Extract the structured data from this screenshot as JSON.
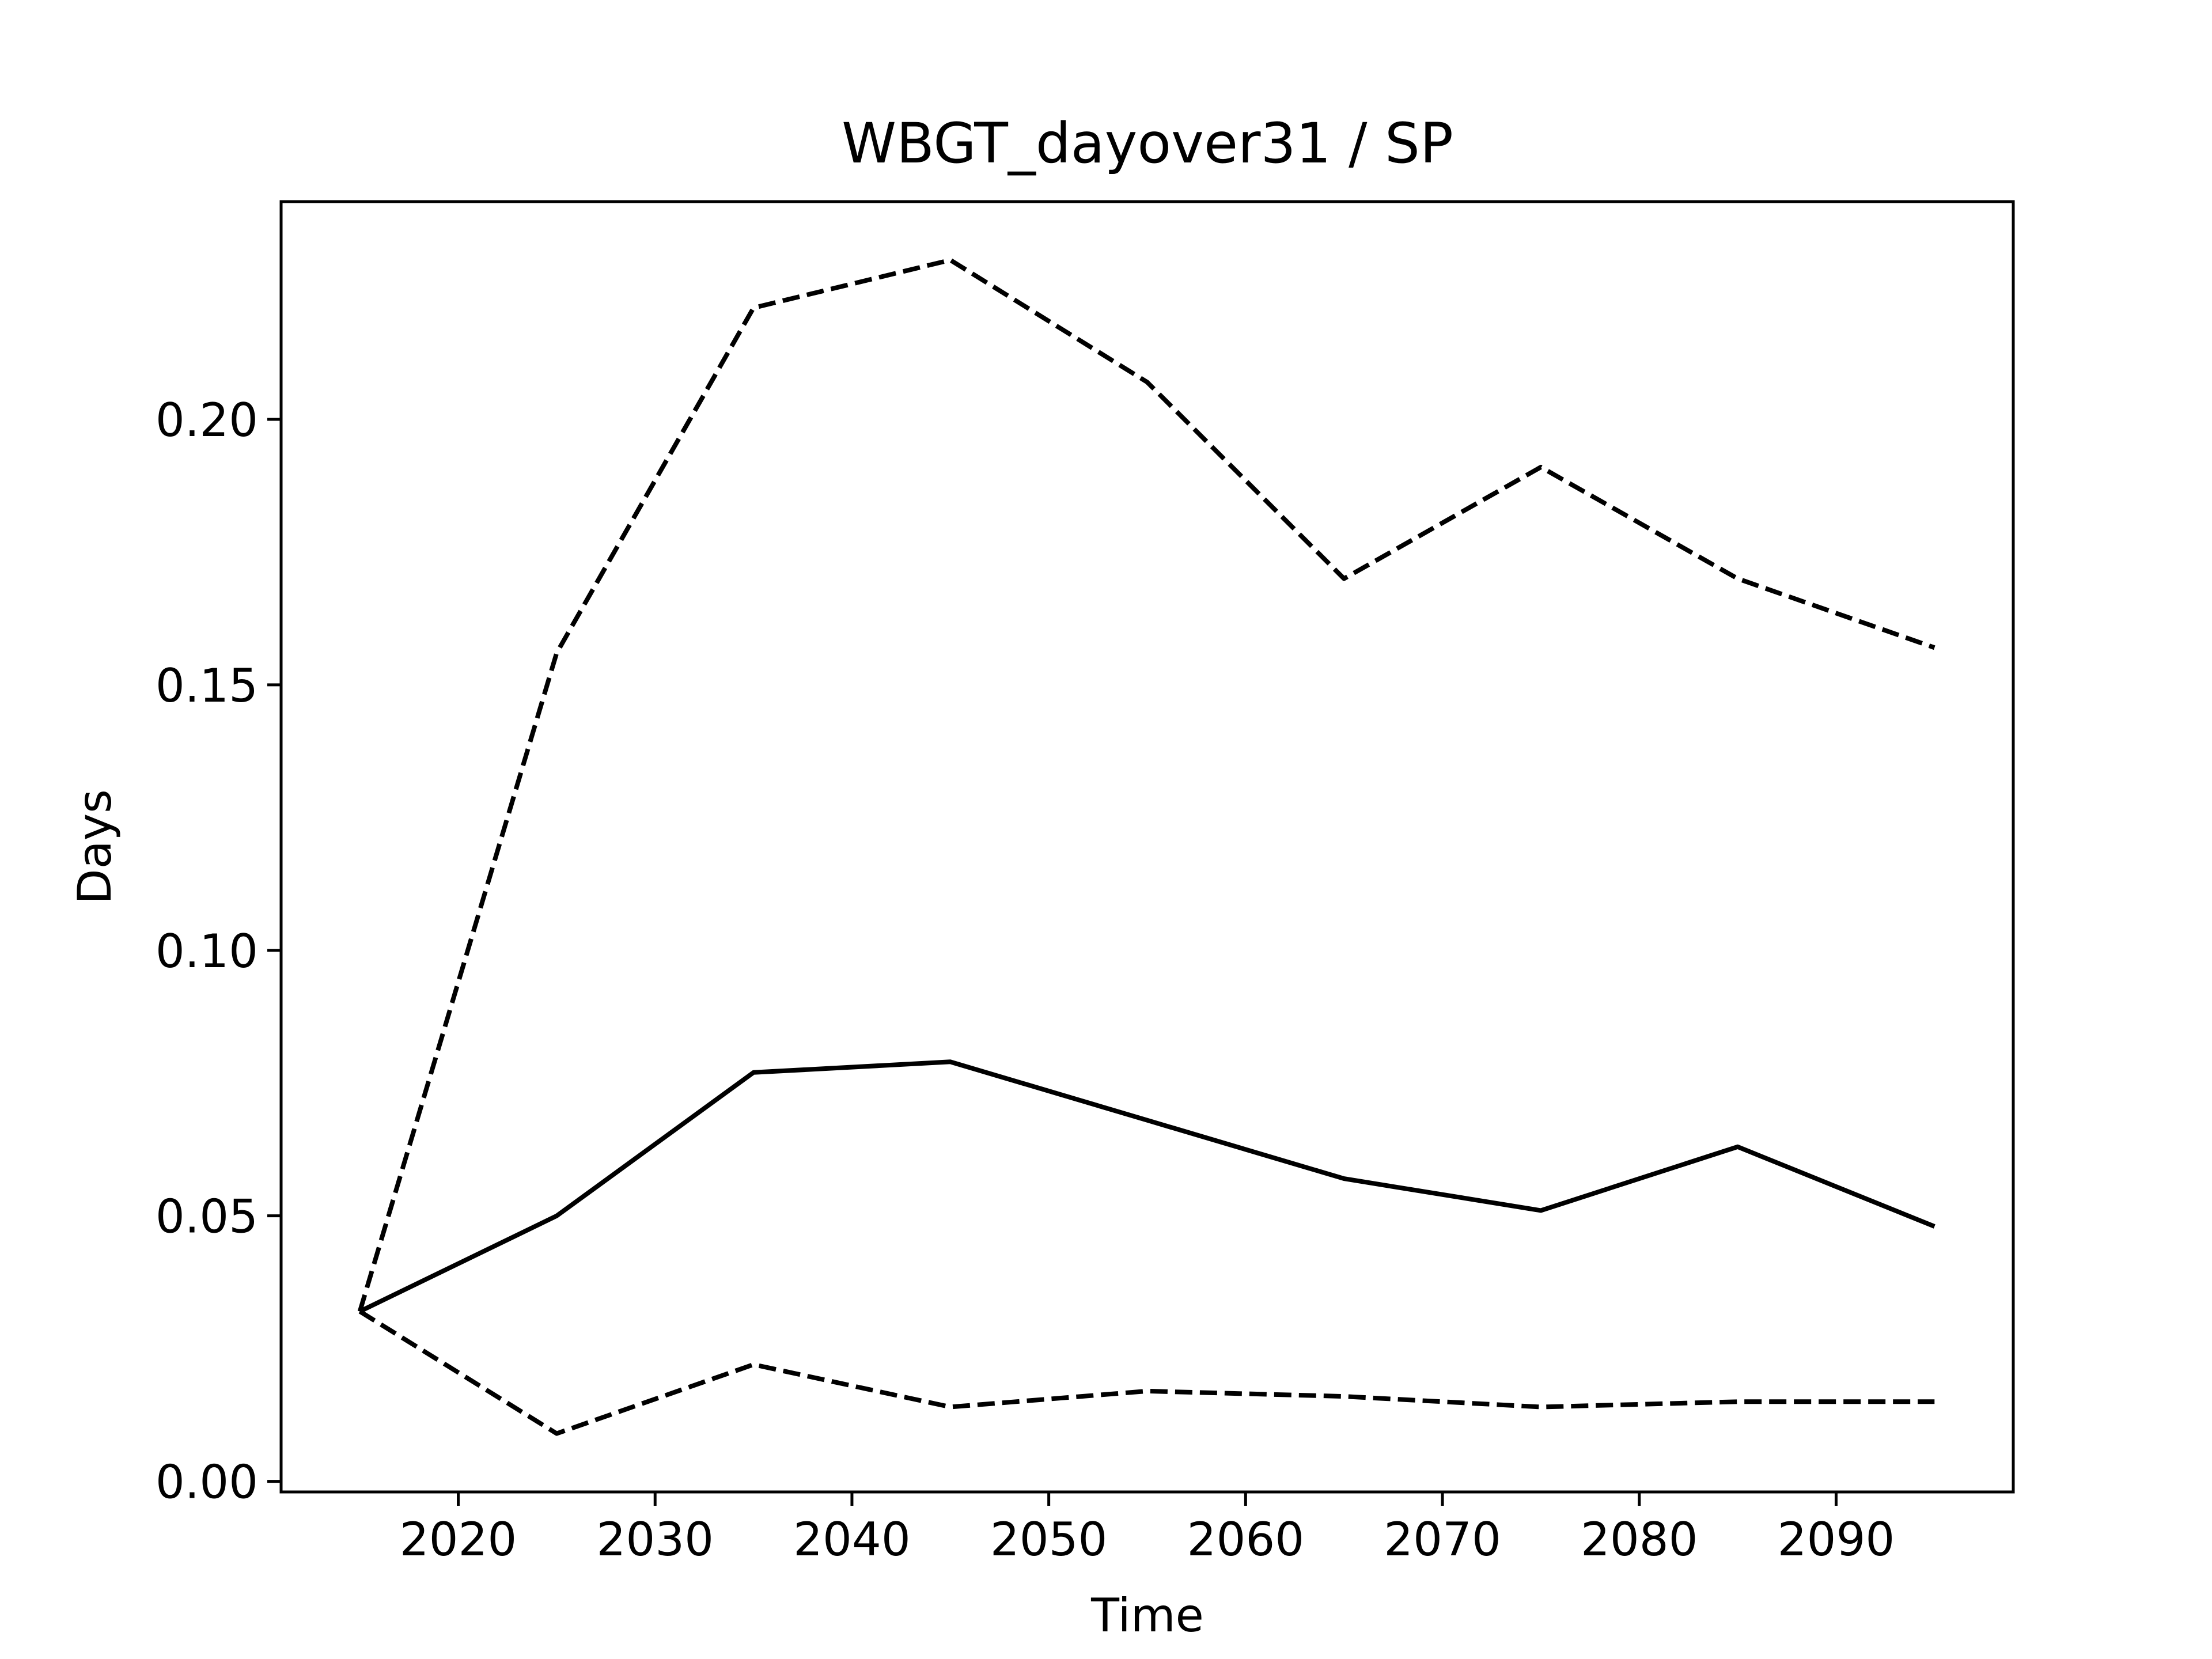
{
  "chart_data": {
    "type": "line",
    "title": "WBGT_dayover31 / SP",
    "xlabel": "Time",
    "ylabel": "Days",
    "x": [
      2015,
      2025,
      2035,
      2045,
      2055,
      2065,
      2075,
      2085,
      2095
    ],
    "xlim": [
      2011,
      2099
    ],
    "ylim": [
      -0.002,
      0.241
    ],
    "xticks": [
      2020,
      2030,
      2040,
      2050,
      2060,
      2070,
      2080,
      2090
    ],
    "xtick_labels": [
      "2020",
      "2030",
      "2040",
      "2050",
      "2060",
      "2070",
      "2080",
      "2090"
    ],
    "yticks": [
      0.0,
      0.05,
      0.1,
      0.15,
      0.2
    ],
    "ytick_labels": [
      "0.00",
      "0.05",
      "0.10",
      "0.15",
      "0.20"
    ],
    "grid": false,
    "series": [
      {
        "style": "solid",
        "color": "#000000",
        "values": [
          0.032,
          0.05,
          0.077,
          0.079,
          0.068,
          0.057,
          0.051,
          0.063,
          0.048
        ]
      },
      {
        "style": "dashed",
        "color": "#000000",
        "values": [
          0.032,
          0.156,
          0.221,
          0.23,
          0.207,
          0.17,
          0.191,
          0.17,
          0.157
        ]
      },
      {
        "style": "dashed",
        "color": "#000000",
        "values": [
          0.032,
          0.009,
          0.022,
          0.014,
          0.017,
          0.016,
          0.014,
          0.015,
          0.015
        ]
      }
    ]
  }
}
